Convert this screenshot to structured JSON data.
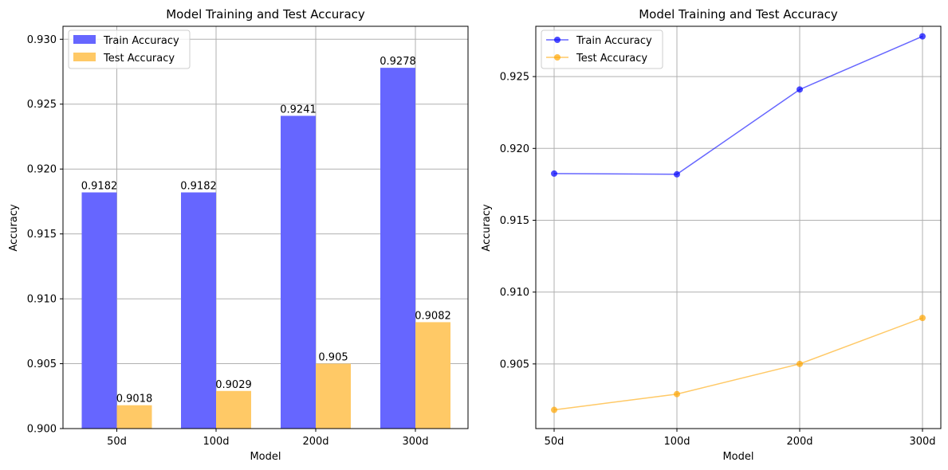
{
  "chart_data": [
    {
      "type": "bar",
      "title": "Model Training and Test Accuracy",
      "xlabel": "Model",
      "ylabel": "Accuracy",
      "categories": [
        "50d",
        "100d",
        "200d",
        "300d"
      ],
      "ylim": [
        0.9,
        0.931
      ],
      "yticks": [
        "0.900",
        "0.905",
        "0.910",
        "0.915",
        "0.920",
        "0.925",
        "0.930"
      ],
      "grid": true,
      "legend_position": "top-left",
      "series": [
        {
          "name": "Train Accuracy",
          "color": "#6666ff",
          "values": [
            0.9182,
            0.9182,
            0.9241,
            0.9278
          ],
          "labels": [
            "0.9182",
            "0.9182",
            "0.9241",
            "0.9278"
          ]
        },
        {
          "name": "Test Accuracy",
          "color": "#ffc966",
          "values": [
            0.9018,
            0.9029,
            0.905,
            0.9082
          ],
          "labels": [
            "0.9018",
            "0.9029",
            "0.905",
            "0.9082"
          ]
        }
      ]
    },
    {
      "type": "line",
      "title": "Model Training and Test Accuracy",
      "xlabel": "Model",
      "ylabel": "Accuracy",
      "categories": [
        "50d",
        "100d",
        "200d",
        "300d"
      ],
      "ylim": [
        0.9005,
        0.9285
      ],
      "yticks": [
        "0.905",
        "0.910",
        "0.915",
        "0.920",
        "0.925"
      ],
      "grid": true,
      "legend_position": "top-left",
      "series": [
        {
          "name": "Train Accuracy",
          "color": "#0000ff",
          "values": [
            0.91825,
            0.9182,
            0.9241,
            0.9278
          ]
        },
        {
          "name": "Test Accuracy",
          "color": "#ffa500",
          "values": [
            0.9018,
            0.9029,
            0.905,
            0.9082
          ]
        }
      ]
    }
  ]
}
